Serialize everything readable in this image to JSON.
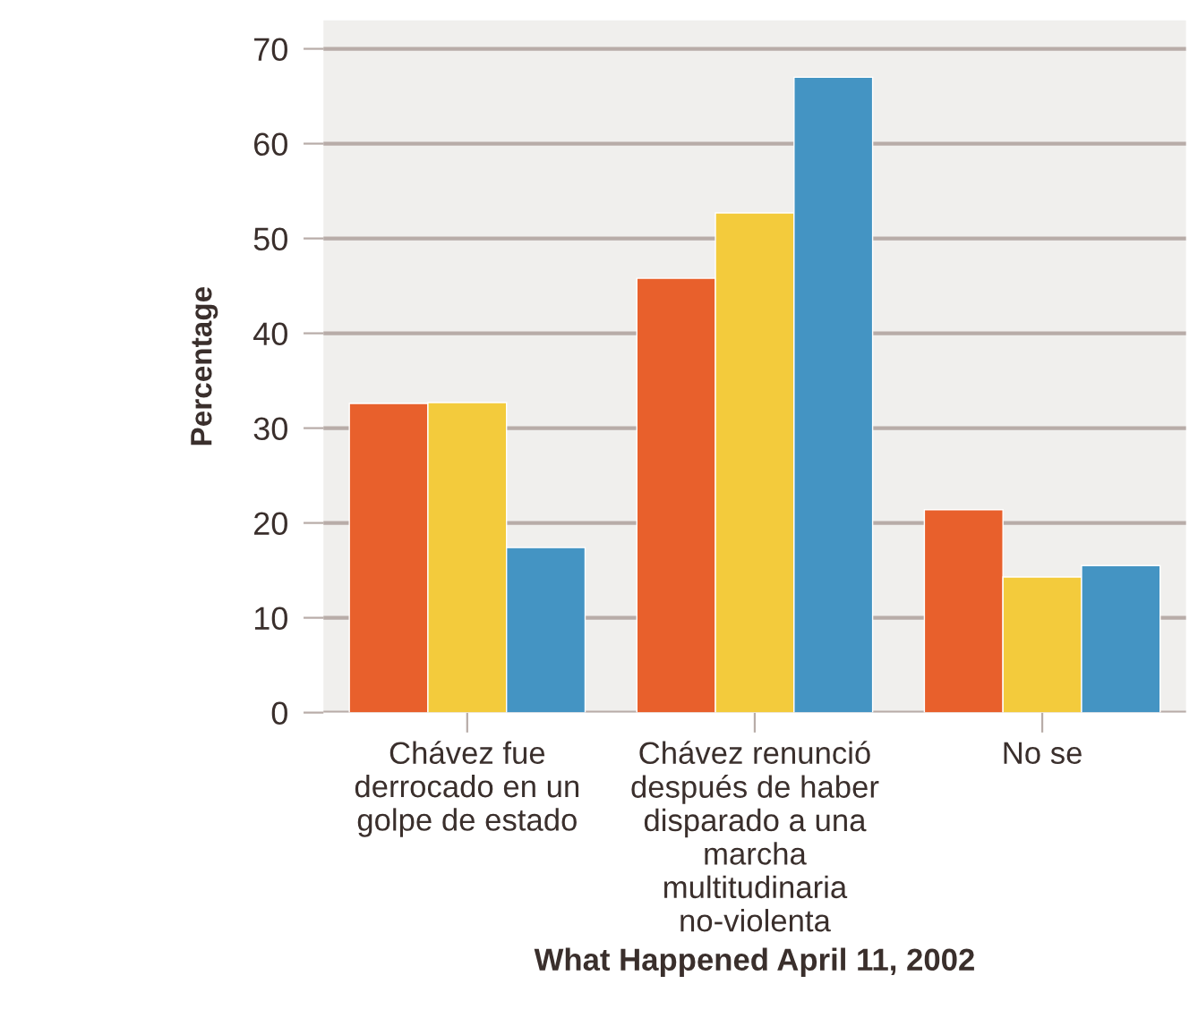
{
  "chart_data": {
    "type": "bar",
    "xlabel": "What Happened April 11, 2002",
    "ylabel": "Percentage",
    "categories": [
      "Chávez fue\nderrocado en un\ngolpe de estado",
      "Chávez renunció\ndespués de haber\ndisparado a una\nmarcha\nmultitudinaria\nno-violenta",
      "No se"
    ],
    "series": [
      {
        "color": "#e8602c",
        "values": [
          32.6,
          45.8,
          21.4
        ]
      },
      {
        "color": "#f3cb3c",
        "values": [
          32.7,
          52.7,
          14.3
        ]
      },
      {
        "color": "#4494c3",
        "values": [
          17.4,
          67.0,
          15.5
        ]
      }
    ],
    "ylim": [
      0,
      73
    ],
    "yticks": [
      0,
      10,
      20,
      30,
      40,
      50,
      60,
      70
    ],
    "grid": "y",
    "legend": false
  }
}
